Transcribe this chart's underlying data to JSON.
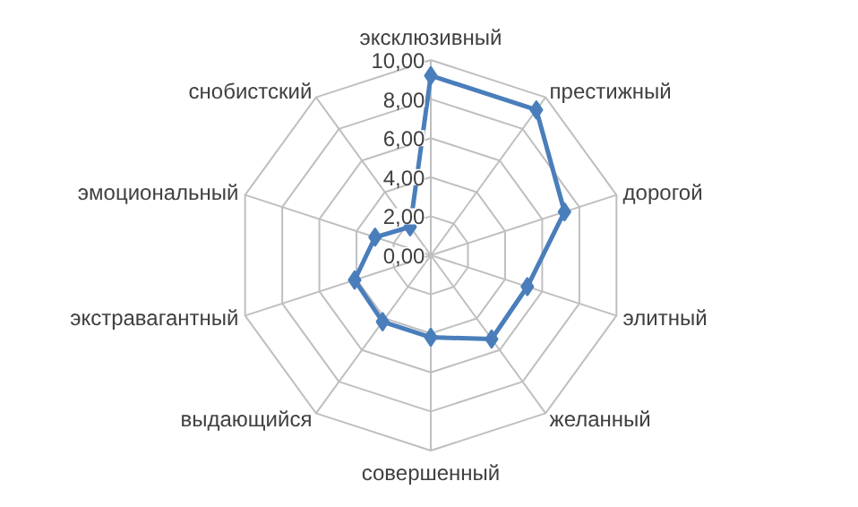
{
  "chart_data": {
    "type": "radar",
    "categories": [
      "эксклюзивный",
      "престижный",
      "дорогой",
      "элитный",
      "желанный",
      "совершенный",
      "выдающийся",
      "экстравагантный",
      "эмоциональный",
      "снобистский"
    ],
    "series": [
      {
        "color": "#4a7ebb",
        "values": [
          9.2,
          9.2,
          7.2,
          5.2,
          5.3,
          4.2,
          4.2,
          4.1,
          3.0,
          1.8
        ]
      }
    ],
    "ylim": [
      0,
      10
    ],
    "yticks": [
      {
        "value": 0,
        "label": "0,00"
      },
      {
        "value": 2,
        "label": "2,00"
      },
      {
        "value": 4,
        "label": "4,00"
      },
      {
        "value": 6,
        "label": "6,00"
      },
      {
        "value": 8,
        "label": "8,00"
      },
      {
        "value": 10,
        "label": "10,00"
      }
    ],
    "grid": true,
    "marker": "diamond",
    "line_style": "solid"
  }
}
